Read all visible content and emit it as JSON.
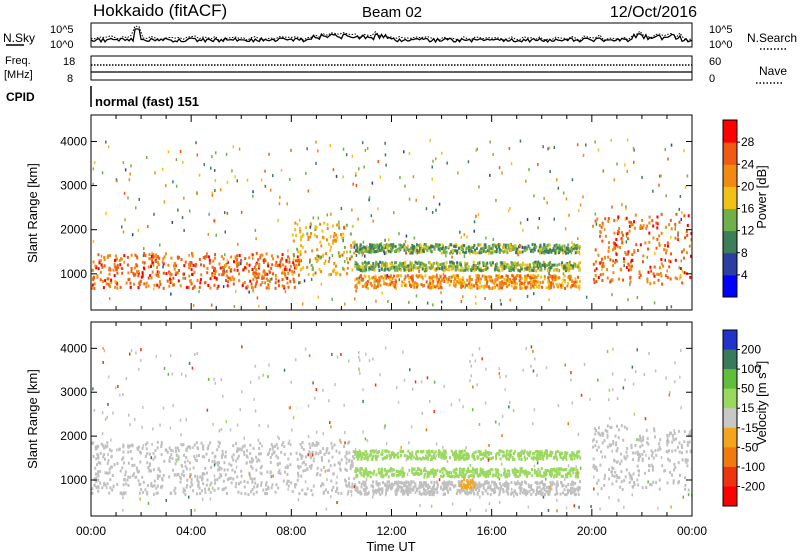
{
  "header": {
    "station": "Hokkaido (fitACF)",
    "beam": "Beam 02",
    "date": "12/Oct/2016"
  },
  "strip_nsky": {
    "left_label": "N.Sky",
    "left_ticks": [
      "10^5",
      "10^0"
    ],
    "right_ticks": [
      "10^5",
      "10^0"
    ],
    "right_label": "N.Search"
  },
  "strip_freq": {
    "left_label_1": "Freq.",
    "left_label_2": "[MHz]",
    "left_ticks": [
      "18",
      "8"
    ],
    "right_ticks": [
      "60",
      "0"
    ],
    "right_label": "Nave"
  },
  "strip_cpid": {
    "left_label": "CPID",
    "program": "normal (fast) 151"
  },
  "colors": {
    "power_scale": [
      "#0000ff",
      "#2a3f9f",
      "#3c7d5a",
      "#6fb04a",
      "#f3c017",
      "#f08a13",
      "#f05a12",
      "#ff0000"
    ],
    "velocity_scale": [
      "#2233cc",
      "#3a7a5c",
      "#5fbf3a",
      "#9ad95e",
      "#c8c8c8",
      "#f3a51b",
      "#f07a10",
      "#ee3310",
      "#ff0000"
    ],
    "ground_scatter": "#c0c0c0"
  },
  "chart_data": [
    {
      "type": "heatmap",
      "panel": "power",
      "ylabel": "Slant Range [km]",
      "yticks": [
        "1000",
        "2000",
        "3000",
        "4000"
      ],
      "ylim": [
        180,
        4600
      ],
      "xlim": [
        0,
        24
      ],
      "colorbar_label": "Power [dB]",
      "colorbar_ticks": [
        "4",
        "8",
        "12",
        "16",
        "20",
        "24",
        "28"
      ],
      "colorbar_range": [
        0,
        32
      ],
      "features": [
        {
          "from_h": 0.0,
          "to_h": 8.3,
          "range_lo": 700,
          "range_hi": 1500,
          "level": 25
        },
        {
          "from_h": 8.0,
          "to_h": 10.5,
          "range_lo": 1000,
          "range_hi": 2200,
          "level": 20
        },
        {
          "from_h": 10.5,
          "to_h": 19.5,
          "range_lo": 700,
          "range_hi": 1000,
          "level": 22
        },
        {
          "from_h": 10.5,
          "to_h": 19.5,
          "range_lo": 1100,
          "range_hi": 1300,
          "level": 14
        },
        {
          "from_h": 10.5,
          "to_h": 19.5,
          "range_lo": 1500,
          "range_hi": 1700,
          "level": 13
        },
        {
          "from_h": 20.0,
          "to_h": 24.0,
          "range_lo": 800,
          "range_hi": 2400,
          "level": 25
        }
      ]
    },
    {
      "type": "heatmap",
      "panel": "velocity",
      "ylabel": "Slant Range [km]",
      "yticks": [
        "1000",
        "2000",
        "3000",
        "4000"
      ],
      "ylim": [
        180,
        4600
      ],
      "xlim": [
        0,
        24
      ],
      "xticks": [
        "00:00",
        "04:00",
        "08:00",
        "12:00",
        "16:00",
        "20:00",
        "00:00"
      ],
      "xlabel": "Time UT",
      "colorbar_label": "Velocity [m s^-1]",
      "colorbar_ticks": [
        "200",
        "100",
        "50",
        "15",
        "-15",
        "-50",
        "-100",
        "-200"
      ],
      "colorbar_range": [
        -250,
        250
      ],
      "features": [
        {
          "from_h": 0.0,
          "to_h": 10.5,
          "range_lo": 700,
          "range_hi": 1900,
          "kind": "ground"
        },
        {
          "from_h": 20.0,
          "to_h": 24.0,
          "range_lo": 800,
          "range_hi": 2300,
          "kind": "ground"
        },
        {
          "from_h": 10.5,
          "to_h": 19.5,
          "range_lo": 700,
          "range_hi": 1000,
          "kind": "ground"
        },
        {
          "from_h": 10.5,
          "to_h": 19.5,
          "range_lo": 1100,
          "range_hi": 1300,
          "value": 30
        },
        {
          "from_h": 10.5,
          "to_h": 19.5,
          "range_lo": 1500,
          "range_hi": 1700,
          "value": 35
        },
        {
          "from_h": 14.7,
          "to_h": 15.3,
          "range_lo": 850,
          "range_hi": 1050,
          "value": -40
        }
      ]
    }
  ]
}
